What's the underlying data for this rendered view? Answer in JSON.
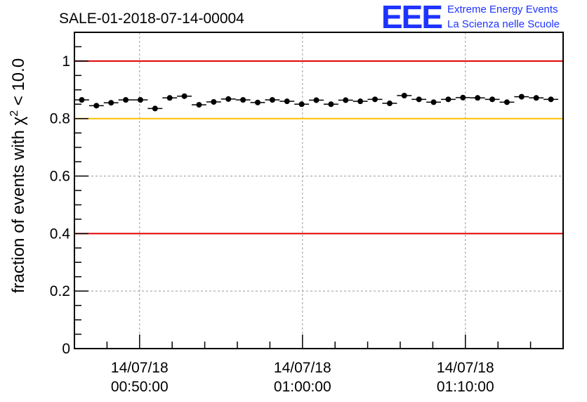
{
  "title": "SALE-01-2018-07-14-00004",
  "logo": {
    "letters": "EEE",
    "line1": "Extreme Energy Events",
    "line2": "La Scienza nelle Scuole"
  },
  "colors": {
    "red_line": "#e00000",
    "yellow_line": "#ffc000",
    "points": "#000000",
    "logo": "#1f33ff"
  },
  "chart_data": {
    "type": "scatter",
    "title": "SALE-01-2018-07-14-00004",
    "ylabel_prefix": "fraction of events with χ",
    "ylabel_sup": "2",
    "ylabel_suffix": " < 10.0",
    "xlabel": "",
    "ylim": [
      0,
      1.1
    ],
    "yticks": [
      0,
      0.2,
      0.4,
      0.6,
      0.8,
      1
    ],
    "ytick_labels": [
      "0",
      "0.2",
      "0.4",
      "0.6",
      "0.8",
      "1"
    ],
    "xlim_minutes": [
      44.0,
      74.0
    ],
    "xticks": [
      {
        "minute": 48,
        "date": "14/07/18",
        "time": "00:50:00"
      },
      {
        "minute": 58,
        "date": "14/07/18",
        "time": "01:00:00"
      },
      {
        "minute": 68,
        "date": "14/07/18",
        "time": "01:10:00"
      }
    ],
    "reference_lines": [
      {
        "y": 1.0,
        "color": "red"
      },
      {
        "y": 0.8,
        "color": "yellow"
      },
      {
        "y": 0.4,
        "color": "red"
      }
    ],
    "bin_width_minutes": 0.9,
    "x": [
      44.45,
      45.35,
      46.25,
      47.15,
      48.05,
      48.95,
      49.85,
      50.75,
      51.65,
      52.55,
      53.45,
      54.35,
      55.25,
      56.15,
      57.05,
      57.95,
      58.85,
      59.75,
      60.65,
      61.55,
      62.45,
      63.35,
      64.25,
      65.15,
      66.05,
      66.95,
      67.85,
      68.75,
      69.65,
      70.55,
      71.45,
      72.35,
      73.25
    ],
    "y": [
      0.865,
      0.845,
      0.855,
      0.865,
      0.865,
      0.835,
      0.872,
      0.878,
      0.848,
      0.858,
      0.868,
      0.865,
      0.856,
      0.865,
      0.86,
      0.85,
      0.864,
      0.85,
      0.864,
      0.86,
      0.867,
      0.853,
      0.88,
      0.867,
      0.857,
      0.867,
      0.873,
      0.872,
      0.867,
      0.857,
      0.876,
      0.872,
      0.867
    ]
  }
}
